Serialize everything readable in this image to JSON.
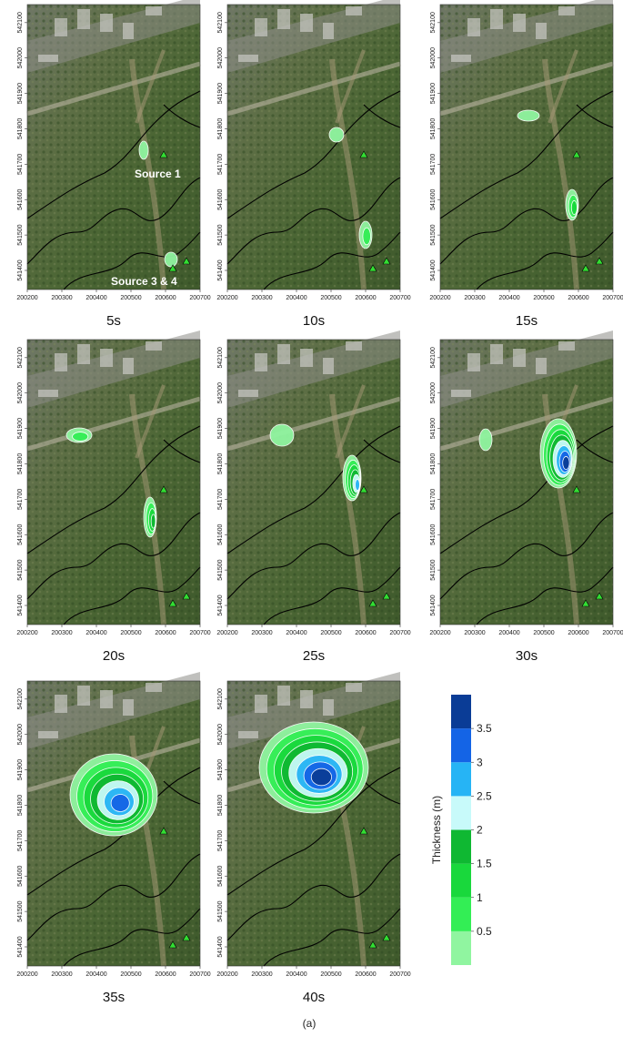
{
  "map": {
    "xlim": [
      200200,
      200700
    ],
    "ylim": [
      541346,
      542151
    ],
    "xticks": [
      200200,
      200300,
      200400,
      200500,
      200600,
      200700
    ],
    "yticks": [
      541400,
      541500,
      541600,
      541700,
      541800,
      541900,
      542000,
      542100
    ]
  },
  "panels": [
    {
      "label": "5s",
      "annotations": [
        "Source 1",
        "Source 3 & 4"
      ]
    },
    {
      "label": "10s"
    },
    {
      "label": "15s"
    },
    {
      "label": "20s"
    },
    {
      "label": "25s"
    },
    {
      "label": "30s"
    },
    {
      "label": "35s"
    },
    {
      "label": "40s"
    }
  ],
  "colorbar": {
    "label": "Thickness (m)",
    "lim": [
      0,
      4
    ],
    "ticks": [
      0.5,
      1.0,
      1.5,
      2.0,
      2.5,
      3.0,
      3.5
    ],
    "colors": [
      "#90f5a0",
      "#33ee55",
      "#19d83c",
      "#0fb832",
      "#c8fafa",
      "#26b4f5",
      "#1464e6",
      "#0a3c96"
    ]
  },
  "caption": "(a)"
}
